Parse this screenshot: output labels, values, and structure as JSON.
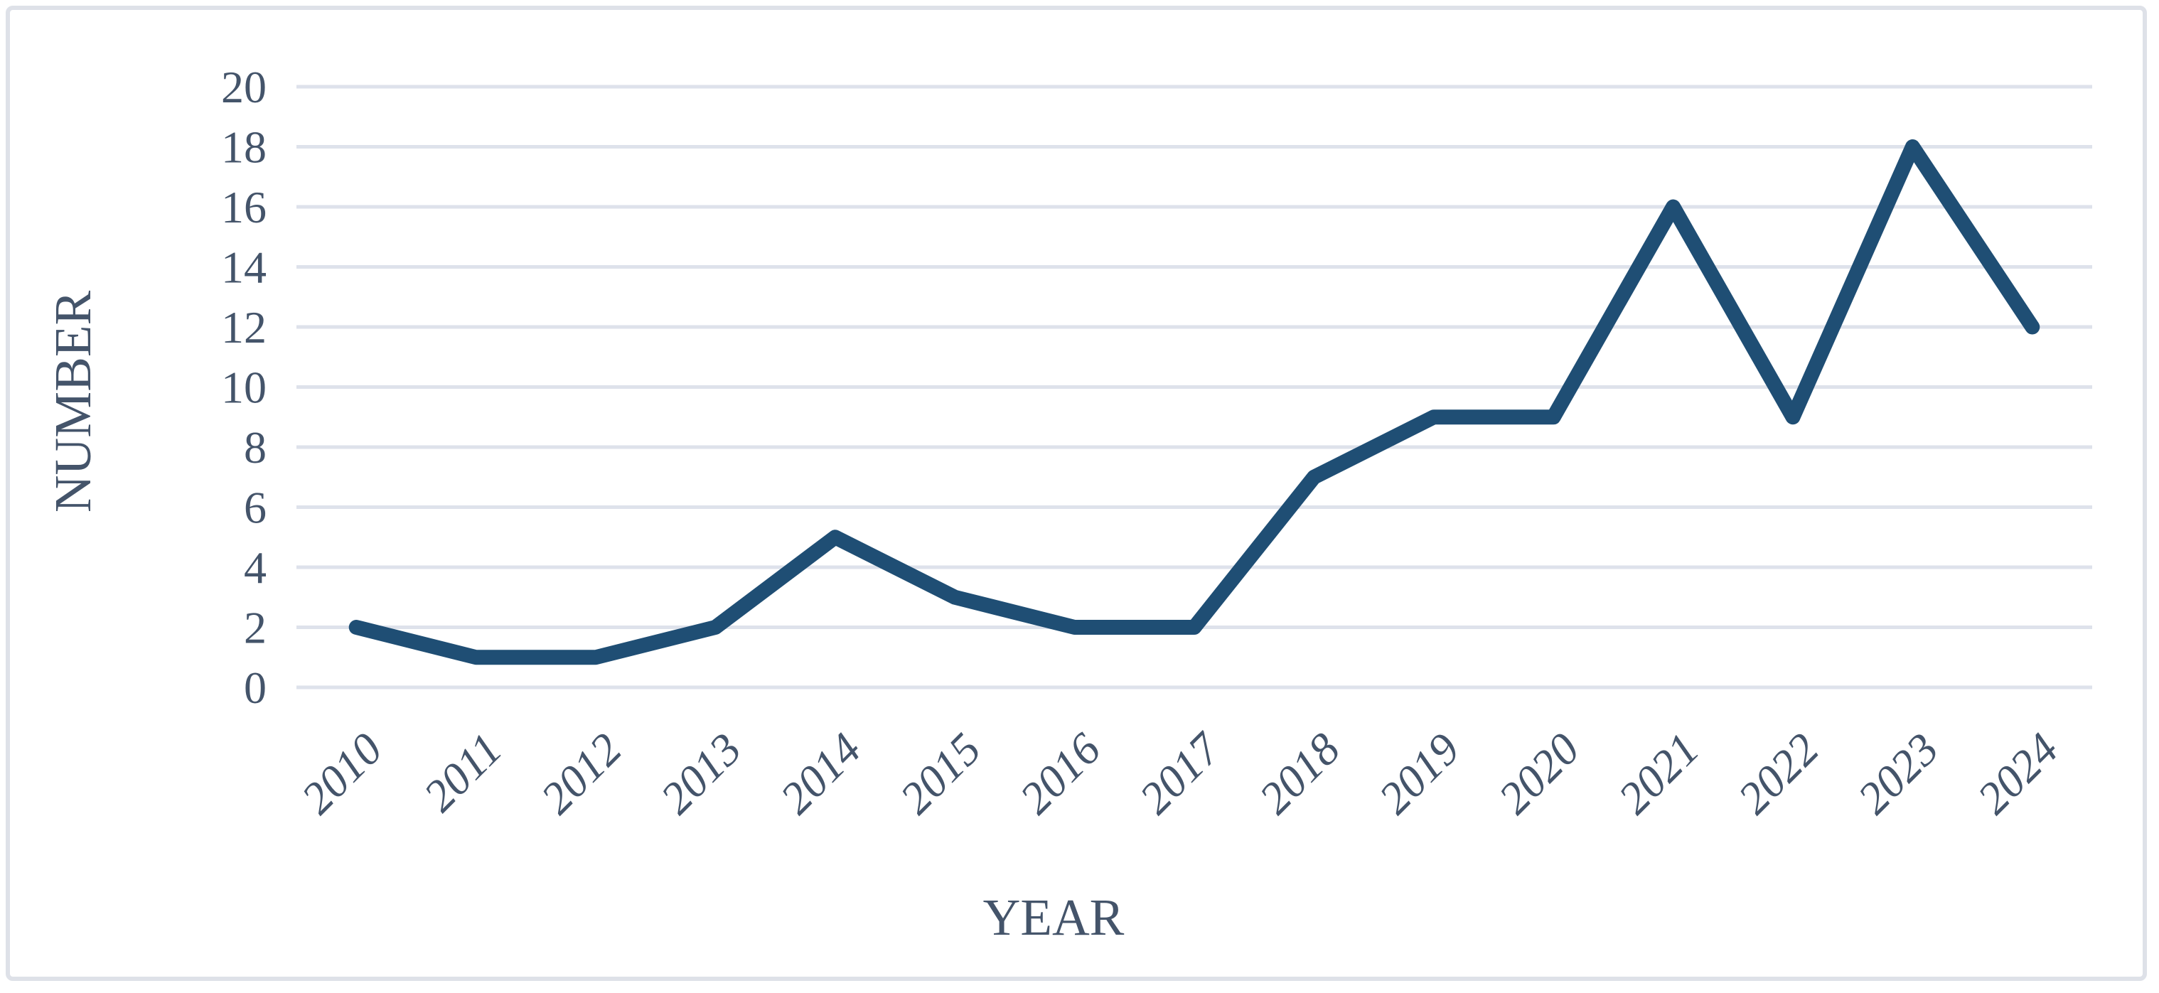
{
  "chart_data": {
    "type": "line",
    "title": "",
    "xlabel": "YEAR",
    "ylabel": "NUMBER",
    "categories": [
      "2010",
      "2011",
      "2012",
      "2013",
      "2014",
      "2015",
      "2016",
      "2017",
      "2018",
      "2019",
      "2020",
      "2021",
      "2022",
      "2023",
      "2024"
    ],
    "values": [
      2,
      1,
      1,
      2,
      5,
      3,
      2,
      2,
      7,
      9,
      9,
      16,
      9,
      18,
      12
    ],
    "yticks": [
      0,
      2,
      4,
      6,
      8,
      10,
      12,
      14,
      16,
      18,
      20
    ],
    "ylim": [
      0,
      20
    ],
    "ytick_step": 2,
    "grid": true,
    "legend": "none",
    "colors": {
      "line": "#1F4E74",
      "gridline": "#DEE2EB",
      "label": "#44546A",
      "frame_border": "#DEE1E8",
      "background": "#FFFFFF"
    }
  }
}
